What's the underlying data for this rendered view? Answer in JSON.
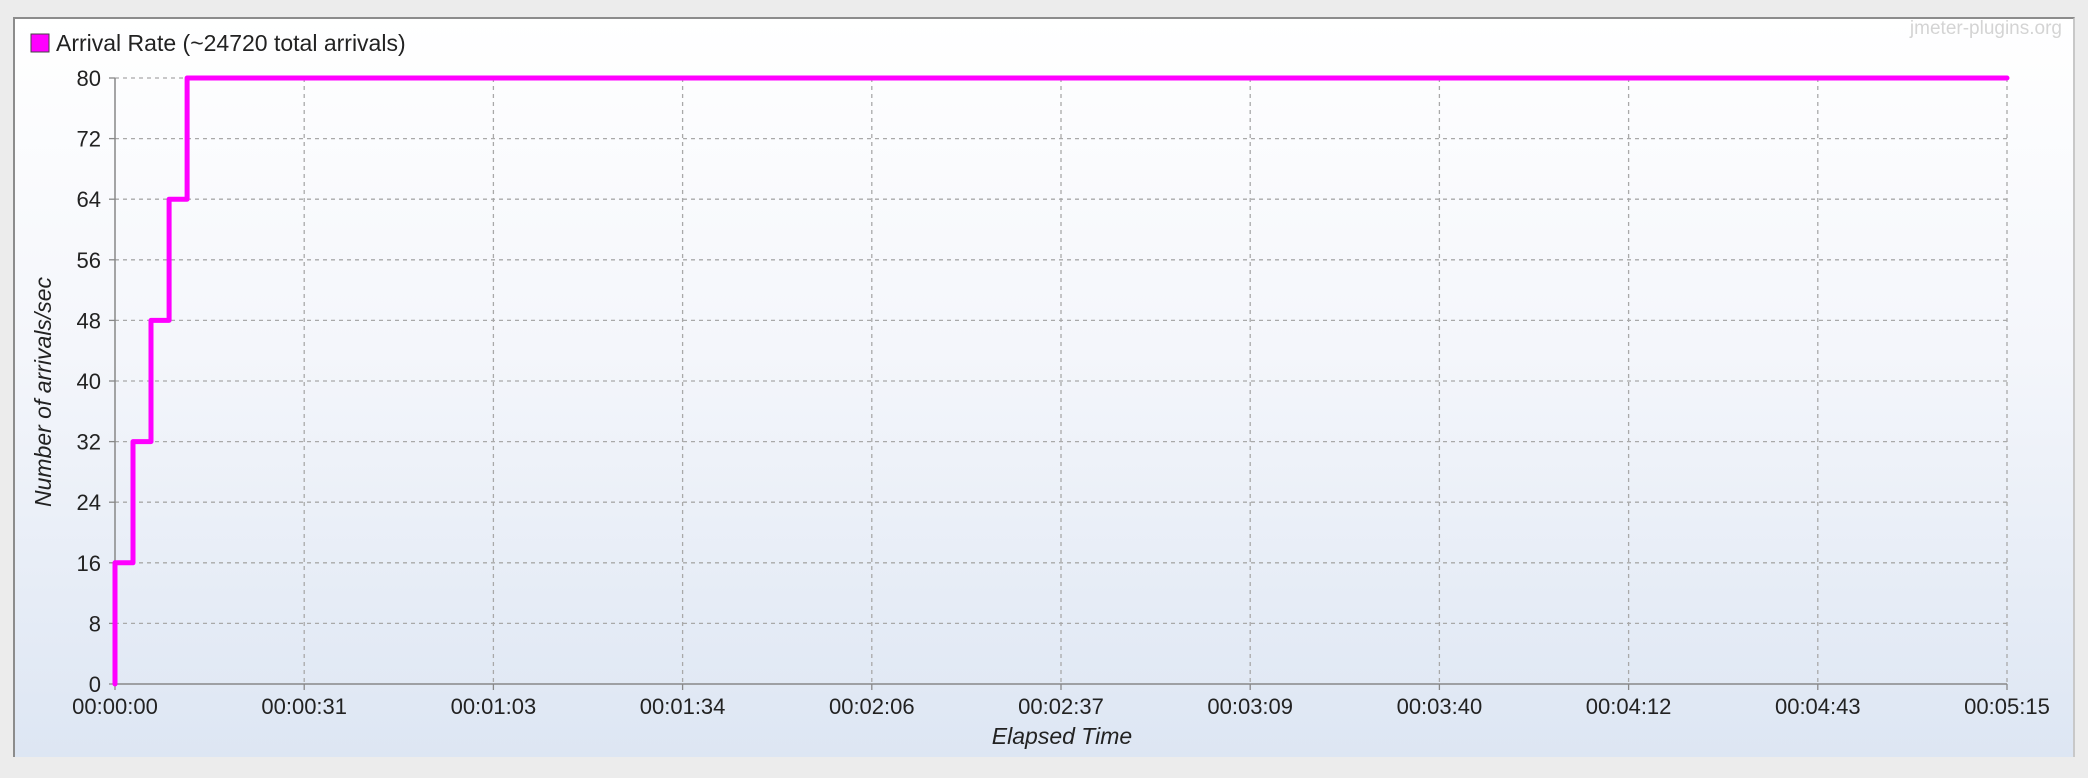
{
  "watermark": "jmeter-plugins.org",
  "chart_data": {
    "type": "line",
    "title": "",
    "xlabel": "Elapsed Time",
    "ylabel": "Number of arrivals/sec",
    "ylim": [
      0,
      80
    ],
    "xlim_seconds": [
      0,
      315
    ],
    "y_ticks": [
      0,
      8,
      16,
      24,
      32,
      40,
      48,
      56,
      64,
      72,
      80
    ],
    "x_ticks": [
      {
        "seconds": 0,
        "label": "00:00:00"
      },
      {
        "seconds": 31.5,
        "label": "00:00:31"
      },
      {
        "seconds": 63,
        "label": "00:01:03"
      },
      {
        "seconds": 94.5,
        "label": "00:01:34"
      },
      {
        "seconds": 126,
        "label": "00:02:06"
      },
      {
        "seconds": 157.5,
        "label": "00:02:37"
      },
      {
        "seconds": 189,
        "label": "00:03:09"
      },
      {
        "seconds": 220.5,
        "label": "00:03:40"
      },
      {
        "seconds": 252,
        "label": "00:04:12"
      },
      {
        "seconds": 283.5,
        "label": "00:04:43"
      },
      {
        "seconds": 315,
        "label": "00:05:15"
      }
    ],
    "grid": true,
    "legend_position": "top-left",
    "series": [
      {
        "name": "Arrival Rate (~24720 total arrivals)",
        "color": "#ff00ff",
        "step": true,
        "points": [
          {
            "x": 0,
            "y": 0
          },
          {
            "x": 0,
            "y": 16
          },
          {
            "x": 3,
            "y": 16
          },
          {
            "x": 3,
            "y": 32
          },
          {
            "x": 6,
            "y": 32
          },
          {
            "x": 6,
            "y": 48
          },
          {
            "x": 9,
            "y": 48
          },
          {
            "x": 9,
            "y": 64
          },
          {
            "x": 12,
            "y": 64
          },
          {
            "x": 12,
            "y": 80
          },
          {
            "x": 315,
            "y": 80
          }
        ]
      }
    ]
  }
}
